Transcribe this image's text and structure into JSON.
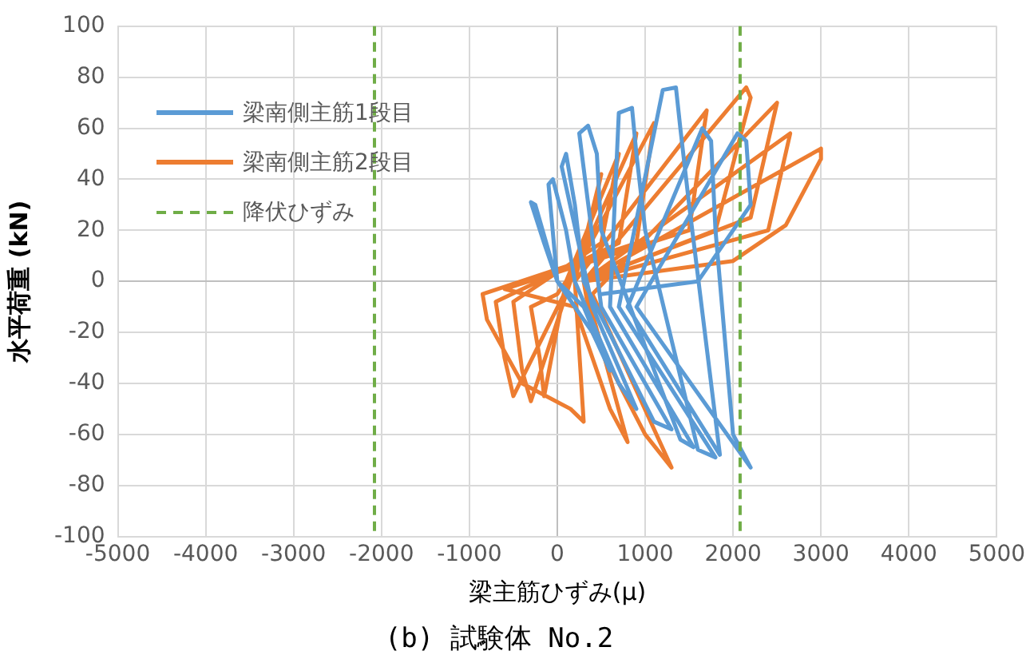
{
  "chart_data": {
    "type": "line",
    "title": "(b) 試験体 No.2",
    "xlabel": "梁主筋ひずみ(μ)",
    "ylabel": "水平荷重 (kN)",
    "xlim": [
      -5000,
      5000
    ],
    "xticks": [
      -5000,
      -4000,
      -3000,
      -2000,
      -1000,
      0,
      1000,
      2000,
      3000,
      4000,
      5000
    ],
    "ylim": [
      -100,
      100
    ],
    "yticks": [
      -100,
      -80,
      -60,
      -40,
      -20,
      0,
      20,
      40,
      60,
      80,
      100
    ],
    "grid": true,
    "legend": "top left",
    "marker": "none",
    "line_style": "solid",
    "series": [
      {
        "name": "梁南側主筋1段目",
        "color": "#5b9bd5",
        "x": [
          0,
          -250,
          -300,
          -150,
          0,
          400,
          600,
          300,
          0,
          -100,
          -50,
          100,
          200,
          700,
          900,
          400,
          50,
          100,
          200,
          300,
          1100,
          1300,
          500,
          250,
          350,
          450,
          500,
          1400,
          1550,
          600,
          700,
          850,
          900,
          1000,
          1600,
          1800,
          700,
          1200,
          1350,
          1400,
          1500,
          1850,
          800,
          1650,
          1750,
          1800,
          2000,
          2200,
          900,
          2050,
          2150,
          2200,
          1600,
          500
        ],
        "values": [
          0,
          30,
          31,
          15,
          0,
          -20,
          -35,
          -10,
          0,
          38,
          40,
          20,
          0,
          -40,
          -50,
          -10,
          45,
          50,
          30,
          0,
          -55,
          -58,
          -10,
          58,
          61,
          50,
          20,
          -62,
          -65,
          -10,
          66,
          68,
          50,
          20,
          -66,
          -69,
          -10,
          75,
          76,
          60,
          30,
          -68,
          -10,
          60,
          55,
          20,
          -60,
          -73,
          -10,
          58,
          55,
          30,
          0,
          -5
        ]
      },
      {
        "name": "梁南側主筋2段目",
        "color": "#ed7d31",
        "x": [
          200,
          500,
          300,
          0,
          -300,
          -200,
          -150,
          100,
          700,
          500,
          -500,
          -400,
          -300,
          150,
          900,
          700,
          -700,
          -600,
          -500,
          150,
          1100,
          900,
          -850,
          -800,
          -400,
          150,
          300,
          200,
          1700,
          1500,
          -600,
          200,
          600,
          800,
          300,
          2150,
          2200,
          1800,
          300,
          400,
          1000,
          1300,
          400,
          2500,
          2200,
          300,
          2650,
          2400,
          300,
          3000,
          3000,
          2600,
          2000,
          300
        ],
        "values": [
          0,
          42,
          10,
          -5,
          -10,
          -30,
          -45,
          0,
          50,
          15,
          -8,
          -35,
          -47,
          0,
          58,
          15,
          -8,
          -30,
          -45,
          0,
          62,
          15,
          -5,
          -15,
          -40,
          -50,
          -55,
          0,
          67,
          20,
          -3,
          -10,
          -50,
          -63,
          0,
          76,
          72,
          20,
          0,
          -20,
          -60,
          -73,
          -5,
          70,
          25,
          0,
          58,
          20,
          0,
          52,
          48,
          22,
          8,
          0
        ]
      }
    ],
    "ref_lines": [
      {
        "axis": "x",
        "value": -2080,
        "label": "降伏ひずみ",
        "color": "#70ad47",
        "line_style": "dashed"
      },
      {
        "axis": "x",
        "value": 2080,
        "color": "#70ad47",
        "line_style": "dashed"
      }
    ]
  }
}
